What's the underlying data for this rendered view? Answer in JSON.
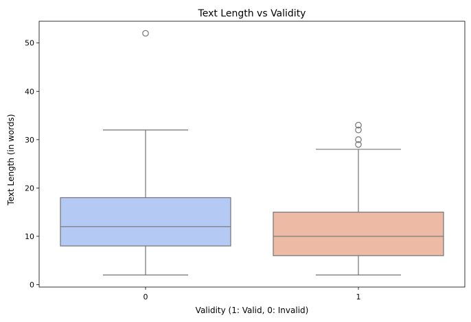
{
  "chart_data": {
    "type": "box",
    "title": "Text Length vs Validity",
    "xlabel": "Validity (1: Valid, 0: Invalid)",
    "ylabel": "Text Length (in words)",
    "categories": [
      "0",
      "1"
    ],
    "ylim": [
      -0.5,
      54.5
    ],
    "yticks": [
      0,
      10,
      20,
      30,
      40,
      50
    ],
    "grid": false,
    "boxes": [
      {
        "category": "0",
        "color": "#b5c9f5",
        "min": 2,
        "q1": 8,
        "median": 12,
        "q3": 18,
        "max": 32,
        "outliers": [
          52
        ]
      },
      {
        "category": "1",
        "color": "#edbba5",
        "min": 2,
        "q1": 6,
        "median": 10,
        "q3": 15,
        "max": 28,
        "outliers": [
          29,
          30,
          32,
          33
        ]
      }
    ],
    "line_color": "#737373"
  }
}
